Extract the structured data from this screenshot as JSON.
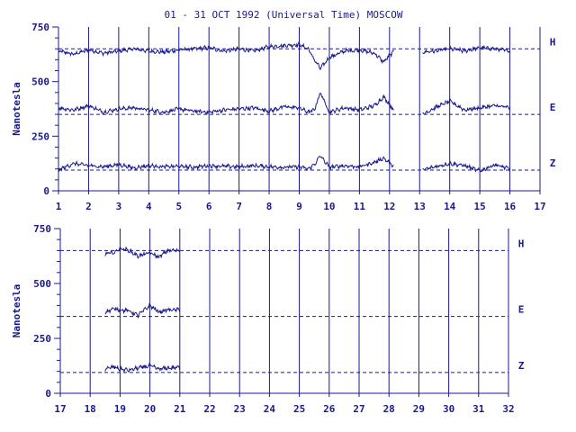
{
  "chart_data": {
    "type": "line",
    "title": "01 - 31 OCT 1992 (Universal Time) MOSCOW",
    "ylabel": "Nanotesla",
    "ylim": [
      0,
      750
    ],
    "yticks": [
      "0",
      "250",
      "500",
      "750"
    ],
    "colors": {
      "line": "#1a1a8c",
      "frame": "#1a1a8c",
      "background": "#ffffff"
    },
    "components": [
      "H",
      "E",
      "Z"
    ],
    "baselines": {
      "H": 650,
      "E": 350,
      "Z": 95
    },
    "grid": "vertical lines at each day; dashed horizontal baselines",
    "panels": [
      {
        "xlim": [
          1,
          17
        ],
        "xticks": [
          "1",
          "2",
          "3",
          "4",
          "5",
          "6",
          "7",
          "8",
          "9",
          "10",
          "11",
          "12",
          "13",
          "14",
          "15",
          "16",
          "17"
        ],
        "series": [
          {
            "component": "H",
            "data_ranges": [
              [
                1.0,
                12.15
              ],
              [
                13.1,
                16.0
              ]
            ],
            "x": [
              1.0,
              1.5,
              2.0,
              2.5,
              3.0,
              3.5,
              4.0,
              4.5,
              5.0,
              5.5,
              6.0,
              6.5,
              7.0,
              7.5,
              8.0,
              8.5,
              9.0,
              9.3,
              9.5,
              9.7,
              10.0,
              10.5,
              11.0,
              11.5,
              11.8,
              12.15,
              13.1,
              13.5,
              14.0,
              14.5,
              15.0,
              15.5,
              16.0
            ],
            "values": [
              640,
              625,
              645,
              630,
              640,
              650,
              640,
              635,
              645,
              650,
              655,
              640,
              650,
              640,
              660,
              665,
              670,
              650,
              600,
              560,
              610,
              640,
              645,
              630,
              590,
              640,
              635,
              640,
              650,
              640,
              655,
              650,
              640
            ]
          },
          {
            "component": "E",
            "data_ranges": [
              [
                1.0,
                12.15
              ],
              [
                13.1,
                16.0
              ]
            ],
            "x": [
              1.0,
              1.5,
              2.0,
              2.5,
              3.0,
              3.5,
              4.0,
              4.5,
              5.0,
              5.5,
              6.0,
              6.5,
              7.0,
              7.5,
              8.0,
              8.5,
              9.0,
              9.3,
              9.5,
              9.7,
              10.0,
              10.5,
              11.0,
              11.5,
              11.8,
              12.15,
              13.1,
              13.5,
              14.0,
              14.5,
              15.0,
              15.5,
              16.0
            ],
            "values": [
              380,
              370,
              390,
              360,
              375,
              380,
              370,
              360,
              375,
              365,
              360,
              370,
              375,
              380,
              365,
              385,
              380,
              360,
              370,
              450,
              360,
              380,
              370,
              390,
              430,
              370,
              350,
              380,
              410,
              370,
              380,
              390,
              380
            ]
          },
          {
            "component": "Z",
            "data_ranges": [
              [
                1.0,
                12.15
              ],
              [
                13.1,
                16.0
              ]
            ],
            "x": [
              1.0,
              1.5,
              2.0,
              2.5,
              3.0,
              3.5,
              4.0,
              4.5,
              5.0,
              5.5,
              6.0,
              6.5,
              7.0,
              7.5,
              8.0,
              8.5,
              9.0,
              9.3,
              9.5,
              9.7,
              10.0,
              10.5,
              11.0,
              11.5,
              11.8,
              12.15,
              13.1,
              13.5,
              14.0,
              14.5,
              15.0,
              15.5,
              16.0
            ],
            "values": [
              95,
              125,
              115,
              110,
              120,
              105,
              115,
              110,
              112,
              108,
              115,
              112,
              110,
              115,
              110,
              108,
              110,
              100,
              120,
              160,
              108,
              115,
              110,
              130,
              150,
              110,
              95,
              110,
              125,
              115,
              90,
              120,
              100
            ]
          }
        ]
      },
      {
        "xlim": [
          17,
          32
        ],
        "xticks": [
          "17",
          "18",
          "19",
          "20",
          "21",
          "22",
          "23",
          "24",
          "25",
          "26",
          "27",
          "28",
          "29",
          "30",
          "31",
          "32"
        ],
        "series": [
          {
            "component": "H",
            "data_ranges": [
              [
                18.5,
                21.0
              ]
            ],
            "x": [
              18.5,
              18.8,
              19.0,
              19.3,
              19.6,
              20.0,
              20.3,
              20.6,
              21.0
            ],
            "values": [
              635,
              640,
              660,
              650,
              625,
              640,
              620,
              650,
              650
            ]
          },
          {
            "component": "E",
            "data_ranges": [
              [
                18.5,
                21.0
              ]
            ],
            "x": [
              18.5,
              18.8,
              19.0,
              19.3,
              19.6,
              20.0,
              20.3,
              20.6,
              21.0
            ],
            "values": [
              370,
              385,
              380,
              375,
              355,
              400,
              370,
              380,
              380
            ]
          },
          {
            "component": "Z",
            "data_ranges": [
              [
                18.5,
                21.0
              ]
            ],
            "x": [
              18.5,
              18.8,
              19.0,
              19.3,
              19.6,
              20.0,
              20.3,
              20.6,
              21.0
            ],
            "values": [
              110,
              120,
              110,
              105,
              115,
              125,
              110,
              115,
              118
            ]
          }
        ]
      }
    ]
  }
}
